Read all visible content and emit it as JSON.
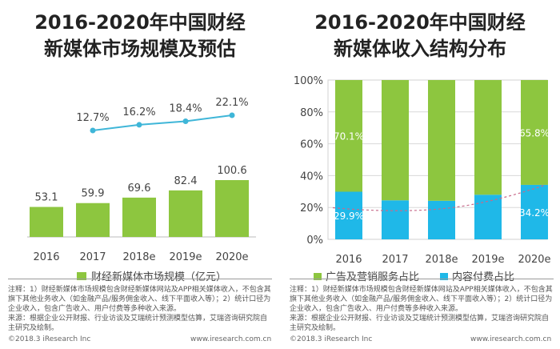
{
  "left": {
    "title_line1": "2016-2020年中国财经",
    "title_line2": "新媒体市场规模及预估",
    "notes": "注释：1）财经新媒体市场规模包含财经新媒体网站及APP相关媒体收入，不包含其旗下其他业务收入（如金融产品/服务佣金收入、线下平面收入等）；2）统计口径为企业收入，包含广告收入、用户付费等多种收入来源。\n来源：根据企业公开财报、行业访谈及艾瑞统计预测模型估算，艾瑞咨询研究院自主研究及绘制。",
    "copyright": "©2018.3 iResearch Inc",
    "website": "www.iresearch.com.cn"
  },
  "right": {
    "title_line1": "2016-2020年中国财经",
    "title_line2": "新媒体收入结构分布",
    "notes": "注释：1）财经新媒体市场规模包含财经新媒体网站及APP相关媒体收入，不包含其旗下其他业务收入（如金融产品/服务佣金收入、线下平面收入等）；2）统计口径为企业收入，包含广告收入、用户付费等多种收入来源。\n来源：根据企业公开财报、行业访谈及艾瑞统计预测模型估算，艾瑞咨询研究院自主研究及绘制。",
    "copyright": "©2018.3 iResearch Inc",
    "website": "www.iresearch.com.cn"
  },
  "chart_data": [
    {
      "type": "bar",
      "title": "2016-2020年中国财经新媒体市场规模及预估",
      "categories": [
        "2016",
        "2017",
        "2018e",
        "2019e",
        "2020e"
      ],
      "series": [
        {
          "name": "财经新媒体市场规模（亿元）",
          "type": "bar",
          "values": [
            53.1,
            59.9,
            69.6,
            82.4,
            100.6
          ],
          "labels": [
            "53.1",
            "59.9",
            "69.6",
            "82.4",
            "100.6"
          ],
          "color": "#8dc63f"
        },
        {
          "name": "",
          "type": "line",
          "values": [
            null,
            12.7,
            16.2,
            18.4,
            22.1
          ],
          "labels": [
            "",
            "12.7%",
            "16.2%",
            "18.4%",
            "22.1%"
          ],
          "unit": "%",
          "color": "#3fb6d8"
        }
      ],
      "legend_position": "bottom",
      "grid": false
    },
    {
      "type": "bar",
      "stacked": true,
      "title": "2016-2020年中国财经新媒体收入结构分布",
      "categories": [
        "2016",
        "2017",
        "2018e",
        "2019e",
        "2020e"
      ],
      "series": [
        {
          "name": "广告及营销服务占比",
          "values": [
            70.1,
            75.5,
            75.8,
            72.0,
            65.8
          ],
          "color": "#8dc63f"
        },
        {
          "name": "内容付费占比",
          "values": [
            29.9,
            24.5,
            24.2,
            28.0,
            34.2
          ],
          "color": "#1fb8e8"
        }
      ],
      "point_labels": [
        {
          "category": "2016",
          "series": "广告及营销服务占比",
          "text": "70.1%"
        },
        {
          "category": "2016",
          "series": "内容付费占比",
          "text": "29.9%"
        },
        {
          "category": "2020e",
          "series": "广告及营销服务占比",
          "text": "65.8%"
        },
        {
          "category": "2020e",
          "series": "内容付费占比",
          "text": "34.2%"
        }
      ],
      "ylim": [
        0,
        100
      ],
      "yticks": [
        "0%",
        "20%",
        "40%",
        "60%",
        "80%",
        "100%"
      ],
      "grid": true,
      "legend_position": "bottom"
    }
  ]
}
